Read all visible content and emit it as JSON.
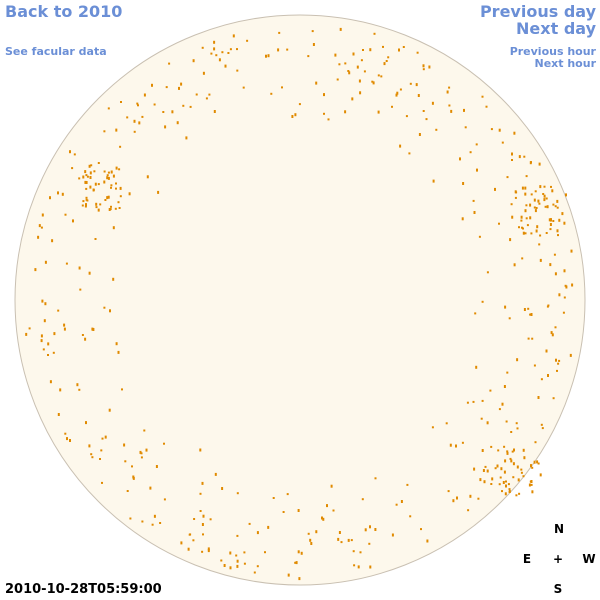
{
  "links": {
    "back": "Back to 2010",
    "facular": "See facular data",
    "previous_day": "Previous day",
    "next_day": "Next day",
    "previous_hour": "Previous hour",
    "next_hour": "Next hour"
  },
  "compass": {
    "north": "N",
    "east": "E",
    "center": "+",
    "west": "W",
    "south": "S"
  },
  "timestamp": "2010-10-28T05:59:00"
}
